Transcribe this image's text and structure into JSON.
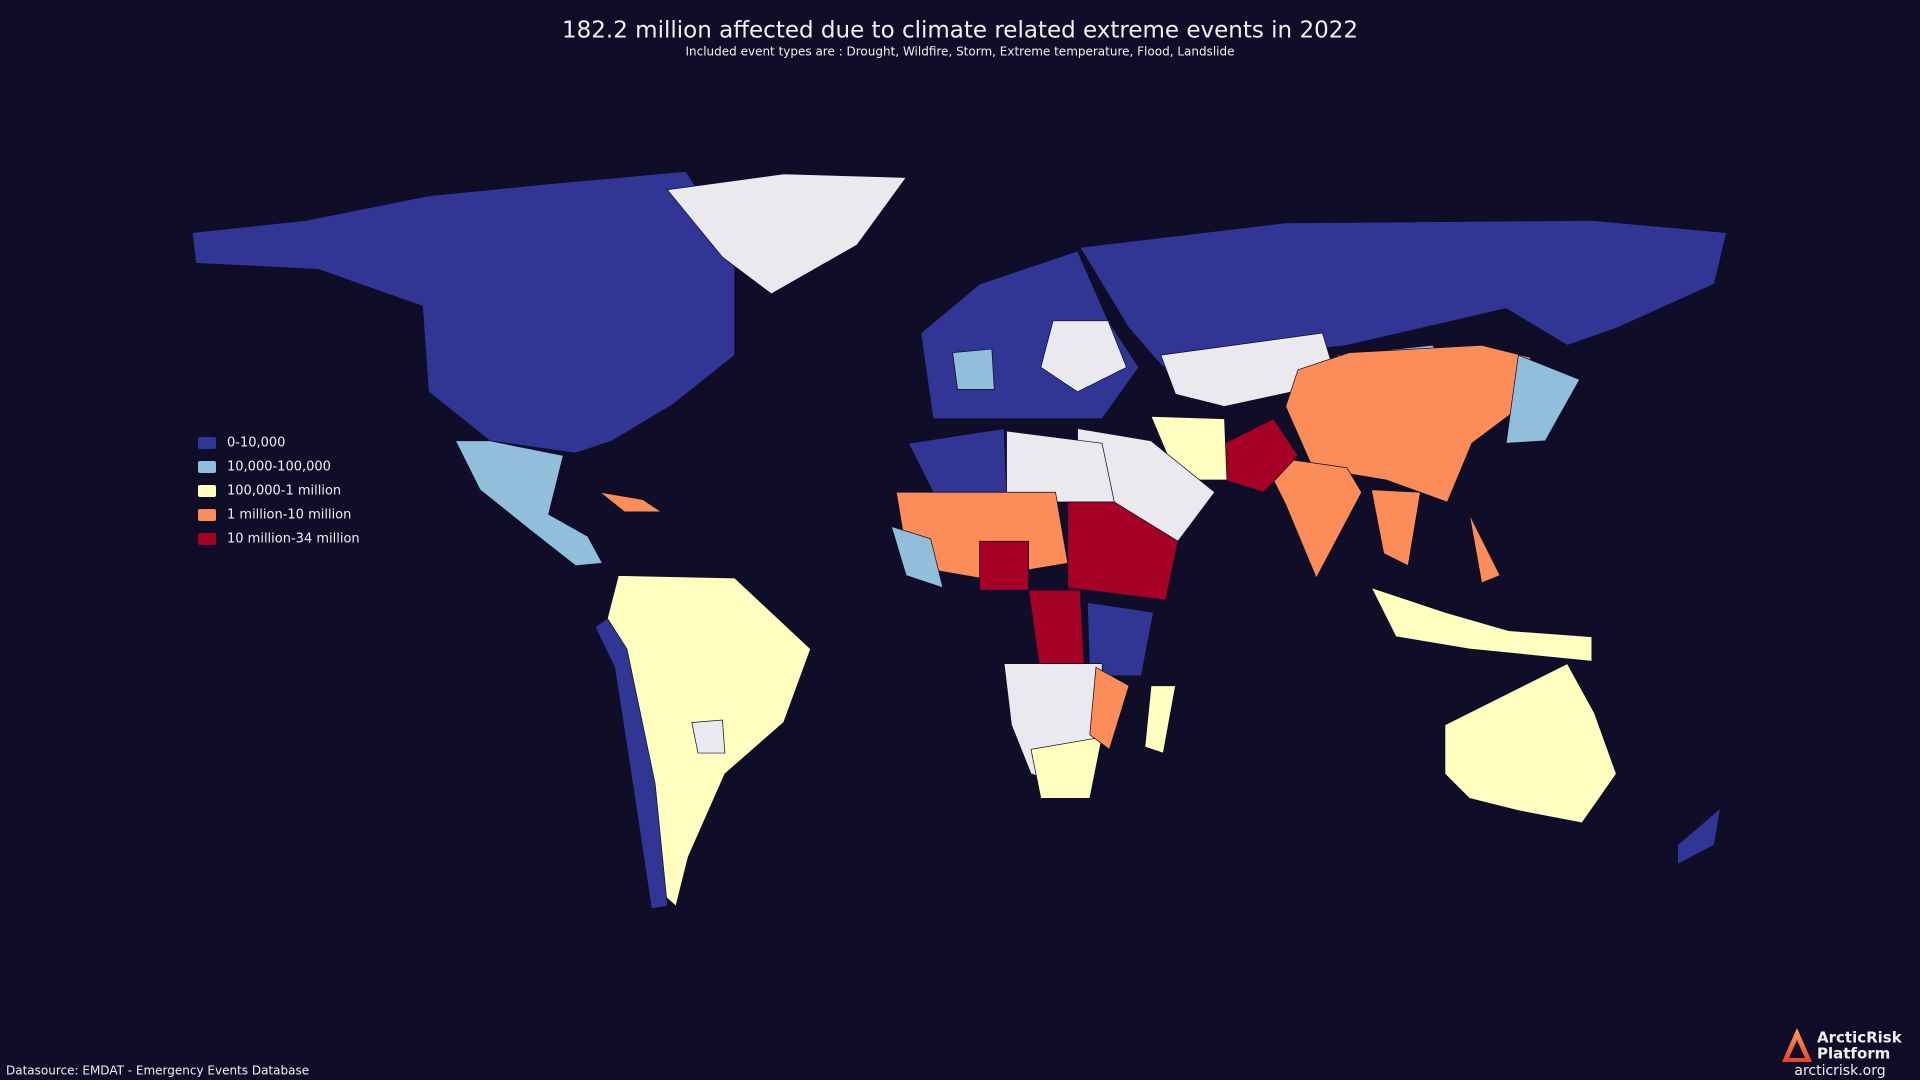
{
  "header": {
    "title": "182.2 million affected due to climate related extreme events in 2022",
    "subtitle": "Included event types are : Drought, Wildfire, Storm, Extreme temperature, Flood, Landslide"
  },
  "legend": [
    {
      "label": "0-10,000",
      "color": "#313695"
    },
    {
      "label": "10,000-100,000",
      "color": "#91bfdb"
    },
    {
      "label": "100,000-1 million",
      "color": "#ffffbf"
    },
    {
      "label": "1 million-10 million",
      "color": "#fc8d59"
    },
    {
      "label": "10 million-34 million",
      "color": "#a50026"
    }
  ],
  "footer": {
    "source": "Datasource: EMDAT - Emergency Events Database",
    "logo_line1": "ArcticRisk",
    "logo_line2": "Platform",
    "url": "arcticrisk.org"
  }
}
